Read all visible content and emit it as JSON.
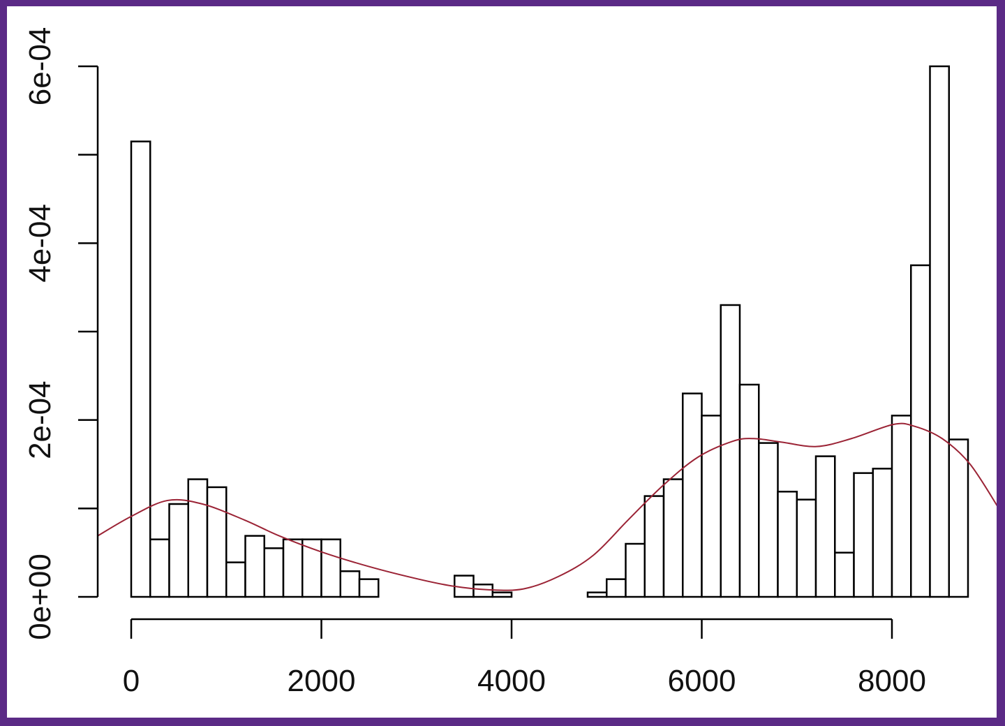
{
  "colors": {
    "border": "#5b2a86",
    "background": "#ffffff",
    "bar_fill": "#ffffff",
    "bar_stroke": "#000000",
    "axis": "#000000",
    "density_line": "#9b2335"
  },
  "chart_data": {
    "type": "bar",
    "subtype": "histogram_with_density",
    "title": "",
    "xlabel": "",
    "ylabel": "",
    "xlim": [
      -350,
      9150
    ],
    "ylim": [
      0,
      0.0006
    ],
    "x_ticks": [
      0,
      2000,
      4000,
      6000,
      8000
    ],
    "x_tick_labels": [
      "0",
      "2000",
      "4000",
      "6000",
      "8000"
    ],
    "y_ticks": [
      0,
      0.0001,
      0.0002,
      0.0003,
      0.0004,
      0.0005,
      0.0006
    ],
    "y_tick_labels": [
      "0e+00",
      "",
      "2e-04",
      "",
      "4e-04",
      "",
      "6e-04"
    ],
    "grid": false,
    "legend": null,
    "bin_width": 200,
    "bins": [
      {
        "x0": 0,
        "x1": 200,
        "density": 0.000515
      },
      {
        "x0": 200,
        "x1": 400,
        "density": 6.5e-05
      },
      {
        "x0": 400,
        "x1": 600,
        "density": 0.000105
      },
      {
        "x0": 600,
        "x1": 800,
        "density": 0.000133
      },
      {
        "x0": 800,
        "x1": 1000,
        "density": 0.000124
      },
      {
        "x0": 1000,
        "x1": 1200,
        "density": 3.9e-05
      },
      {
        "x0": 1200,
        "x1": 1400,
        "density": 6.9e-05
      },
      {
        "x0": 1400,
        "x1": 1600,
        "density": 5.5e-05
      },
      {
        "x0": 1600,
        "x1": 1800,
        "density": 6.5e-05
      },
      {
        "x0": 1800,
        "x1": 2000,
        "density": 6.5e-05
      },
      {
        "x0": 2000,
        "x1": 2200,
        "density": 6.5e-05
      },
      {
        "x0": 2200,
        "x1": 2400,
        "density": 2.9e-05
      },
      {
        "x0": 2400,
        "x1": 2600,
        "density": 2e-05
      },
      {
        "x0": 2600,
        "x1": 2800,
        "density": 0
      },
      {
        "x0": 2800,
        "x1": 3000,
        "density": 0
      },
      {
        "x0": 3000,
        "x1": 3200,
        "density": 0
      },
      {
        "x0": 3200,
        "x1": 3400,
        "density": 0
      },
      {
        "x0": 3400,
        "x1": 3600,
        "density": 2.4e-05
      },
      {
        "x0": 3600,
        "x1": 3800,
        "density": 1.4e-05
      },
      {
        "x0": 3800,
        "x1": 4000,
        "density": 5e-06
      },
      {
        "x0": 4000,
        "x1": 4200,
        "density": 0
      },
      {
        "x0": 4200,
        "x1": 4400,
        "density": 0
      },
      {
        "x0": 4400,
        "x1": 4600,
        "density": 0
      },
      {
        "x0": 4600,
        "x1": 4800,
        "density": 0
      },
      {
        "x0": 4800,
        "x1": 5000,
        "density": 5e-06
      },
      {
        "x0": 5000,
        "x1": 5200,
        "density": 2e-05
      },
      {
        "x0": 5200,
        "x1": 5400,
        "density": 6e-05
      },
      {
        "x0": 5400,
        "x1": 5600,
        "density": 0.000114
      },
      {
        "x0": 5600,
        "x1": 5800,
        "density": 0.000133
      },
      {
        "x0": 5800,
        "x1": 6000,
        "density": 0.00023
      },
      {
        "x0": 6000,
        "x1": 6200,
        "density": 0.000205
      },
      {
        "x0": 6200,
        "x1": 6400,
        "density": 0.00033
      },
      {
        "x0": 6400,
        "x1": 6600,
        "density": 0.00024
      },
      {
        "x0": 6600,
        "x1": 6800,
        "density": 0.000174
      },
      {
        "x0": 6800,
        "x1": 7000,
        "density": 0.000119
      },
      {
        "x0": 7000,
        "x1": 7200,
        "density": 0.00011
      },
      {
        "x0": 7200,
        "x1": 7400,
        "density": 0.000159
      },
      {
        "x0": 7400,
        "x1": 7600,
        "density": 5e-05
      },
      {
        "x0": 7600,
        "x1": 7800,
        "density": 0.00014
      },
      {
        "x0": 7800,
        "x1": 8000,
        "density": 0.000145
      },
      {
        "x0": 8000,
        "x1": 8200,
        "density": 0.000205
      },
      {
        "x0": 8200,
        "x1": 8400,
        "density": 0.000375
      },
      {
        "x0": 8400,
        "x1": 8600,
        "density": 0.0006
      },
      {
        "x0": 8600,
        "x1": 8800,
        "density": 0.000178
      }
    ],
    "series": [
      {
        "name": "kernel density",
        "type": "line",
        "x": [
          -352,
          0,
          382,
          749,
          1189,
          1556,
          1996,
          2510,
          3024,
          3391,
          3758,
          4125,
          4492,
          4859,
          5226,
          5593,
          5960,
          6327,
          6547,
          6840,
          7207,
          7574,
          8015,
          8235,
          8528,
          8822,
          9130
        ],
        "y": [
          6.9e-05,
          9.1e-05,
          0.000109,
          0.000105,
          8.7e-05,
          6.9e-05,
          5.1e-05,
          3.4e-05,
          2e-05,
          1.2e-05,
          8e-06,
          9e-06,
          2.3e-05,
          4.7e-05,
          8.7e-05,
          0.000126,
          0.000158,
          0.000176,
          0.000179,
          0.000175,
          0.00017,
          0.000179,
          0.000195,
          0.000193,
          0.000179,
          0.00015,
          9.9e-05
        ]
      }
    ]
  }
}
